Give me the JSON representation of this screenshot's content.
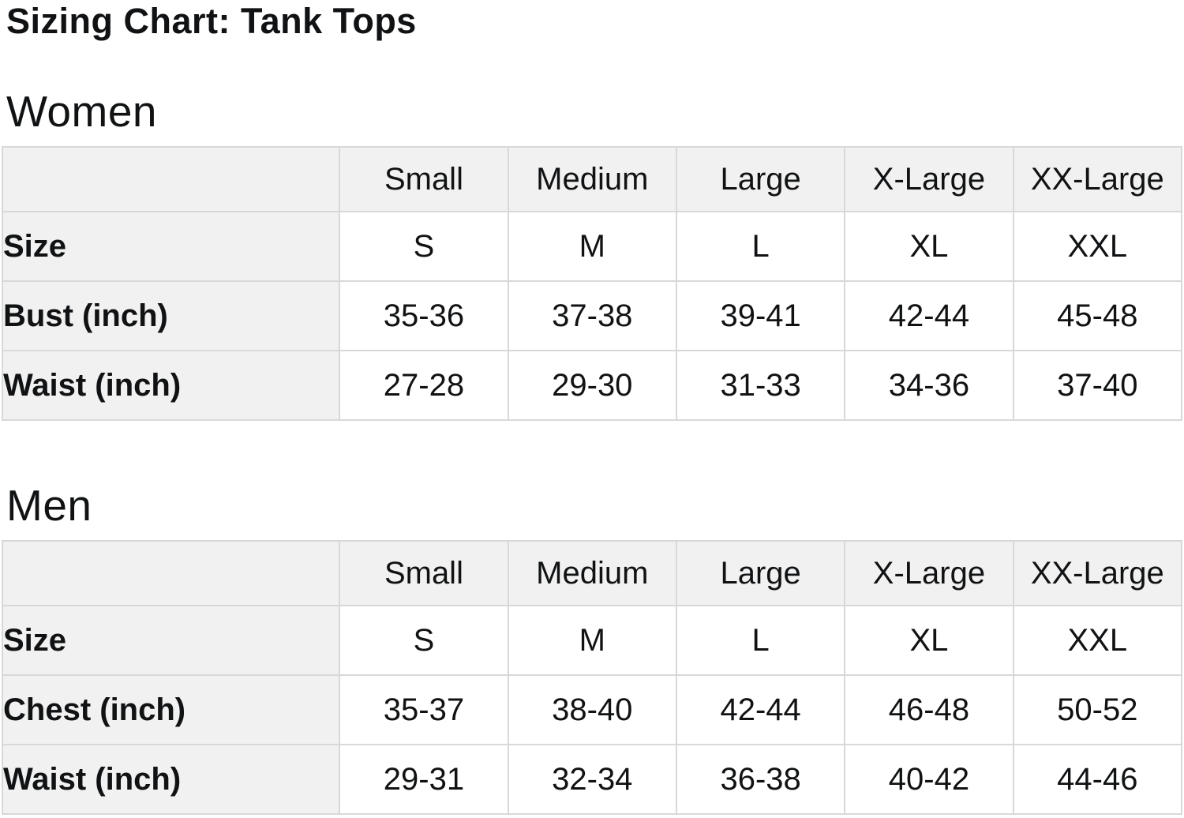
{
  "page": {
    "title": "Sizing Chart: Tank Tops"
  },
  "colors": {
    "header_bg": "#f1f1f1",
    "cell_bg": "#ffffff",
    "border": "#d7d9d9",
    "text": "#101214"
  },
  "sections": [
    {
      "heading": "Women",
      "columns": [
        "Small",
        "Medium",
        "Large",
        "X-Large",
        "XX-Large"
      ],
      "rows": [
        {
          "label": "Size",
          "values": [
            "S",
            "M",
            "L",
            "XL",
            "XXL"
          ]
        },
        {
          "label": "Bust (inch)",
          "values": [
            "35-36",
            "37-38",
            "39-41",
            "42-44",
            "45-48"
          ]
        },
        {
          "label": "Waist (inch)",
          "values": [
            "27-28",
            "29-30",
            "31-33",
            "34-36",
            "37-40"
          ]
        }
      ]
    },
    {
      "heading": "Men",
      "columns": [
        "Small",
        "Medium",
        "Large",
        "X-Large",
        "XX-Large"
      ],
      "rows": [
        {
          "label": "Size",
          "values": [
            "S",
            "M",
            "L",
            "XL",
            "XXL"
          ]
        },
        {
          "label": "Chest (inch)",
          "values": [
            "35-37",
            "38-40",
            "42-44",
            "46-48",
            "50-52"
          ]
        },
        {
          "label": "Waist (inch)",
          "values": [
            "29-31",
            "32-34",
            "36-38",
            "40-42",
            "44-46"
          ]
        }
      ]
    }
  ]
}
